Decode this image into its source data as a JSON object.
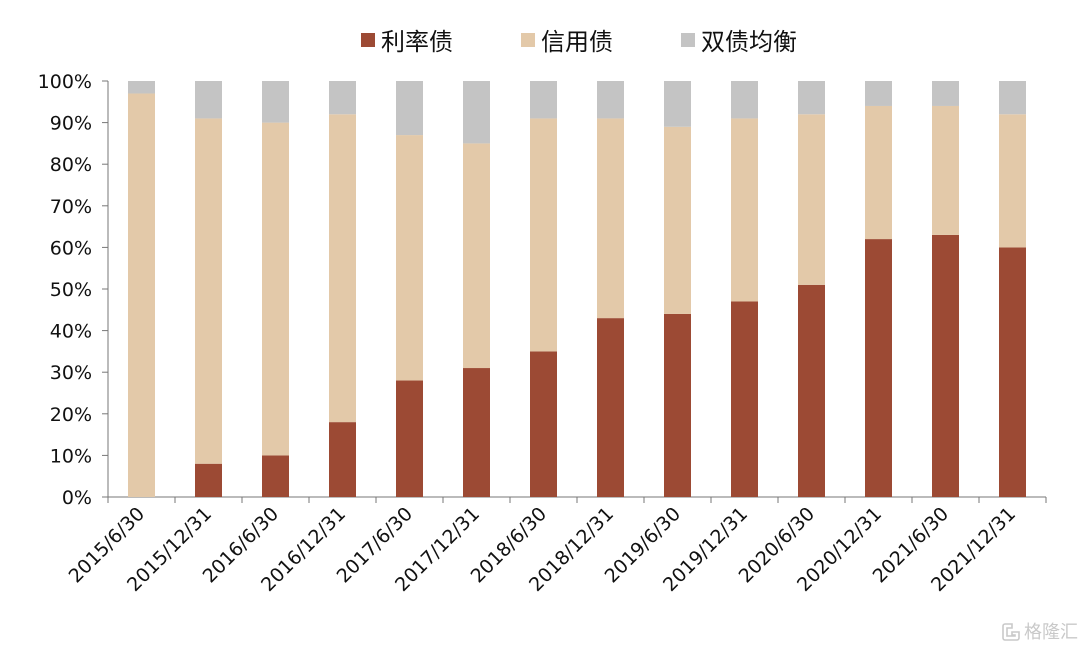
{
  "chart_data": {
    "type": "bar",
    "stacked": true,
    "title": "",
    "xlabel": "",
    "ylabel": "",
    "ylim": [
      0,
      100
    ],
    "y_ticks": [
      "0%",
      "10%",
      "20%",
      "30%",
      "40%",
      "50%",
      "60%",
      "70%",
      "80%",
      "90%",
      "100%"
    ],
    "categories": [
      "2015/6/30",
      "2015/12/31",
      "2016/6/30",
      "2016/12/31",
      "2017/6/30",
      "2017/12/31",
      "2018/6/30",
      "2018/12/31",
      "2019/6/30",
      "2019/12/31",
      "2020/6/30",
      "2020/12/31",
      "2021/6/30",
      "2021/12/31"
    ],
    "series": [
      {
        "name": "利率债",
        "color": "#9c4a34",
        "values": [
          0,
          8,
          10,
          18,
          28,
          31,
          35,
          43,
          44,
          47,
          51,
          62,
          63,
          60
        ]
      },
      {
        "name": "信用债",
        "color": "#e3c9a9",
        "values": [
          97,
          83,
          80,
          74,
          59,
          54,
          56,
          48,
          45,
          44,
          41,
          32,
          31,
          32
        ]
      },
      {
        "name": "双债均衡",
        "color": "#c4c4c4",
        "values": [
          3,
          9,
          10,
          8,
          13,
          15,
          9,
          9,
          11,
          9,
          8,
          6,
          6,
          8
        ]
      }
    ],
    "legend_position": "top-center",
    "grid": false
  },
  "watermark": {
    "text": "格隆汇",
    "icon": "glh-logo-icon"
  }
}
